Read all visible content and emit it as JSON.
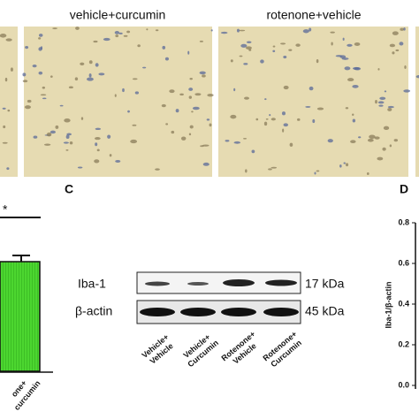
{
  "panel_b": {
    "labels": [
      "vehicle+curcumin",
      "rotenone+vehicle"
    ]
  },
  "panel_left": {
    "significance": "*",
    "x_label": [
      "one+",
      "curcumin"
    ]
  },
  "panel_c": {
    "letter": "C",
    "bands": [
      {
        "name": "Iba-1",
        "size": "17 kDa"
      },
      {
        "name": "β-actin",
        "size": "45 kDa"
      }
    ],
    "lanes": [
      [
        "Vehicle+",
        "Vehicle"
      ],
      [
        "Vehicle+",
        "Curcumin"
      ],
      [
        "Rotenone+",
        "Vehicle"
      ],
      [
        "Rotenone+",
        "Curcumin"
      ]
    ]
  },
  "panel_d": {
    "letter": "D",
    "y_label": "Iba-1/β-actin",
    "yticks": [
      "0.8",
      "0.6",
      "0.4",
      "0.2",
      "0.0"
    ]
  }
}
